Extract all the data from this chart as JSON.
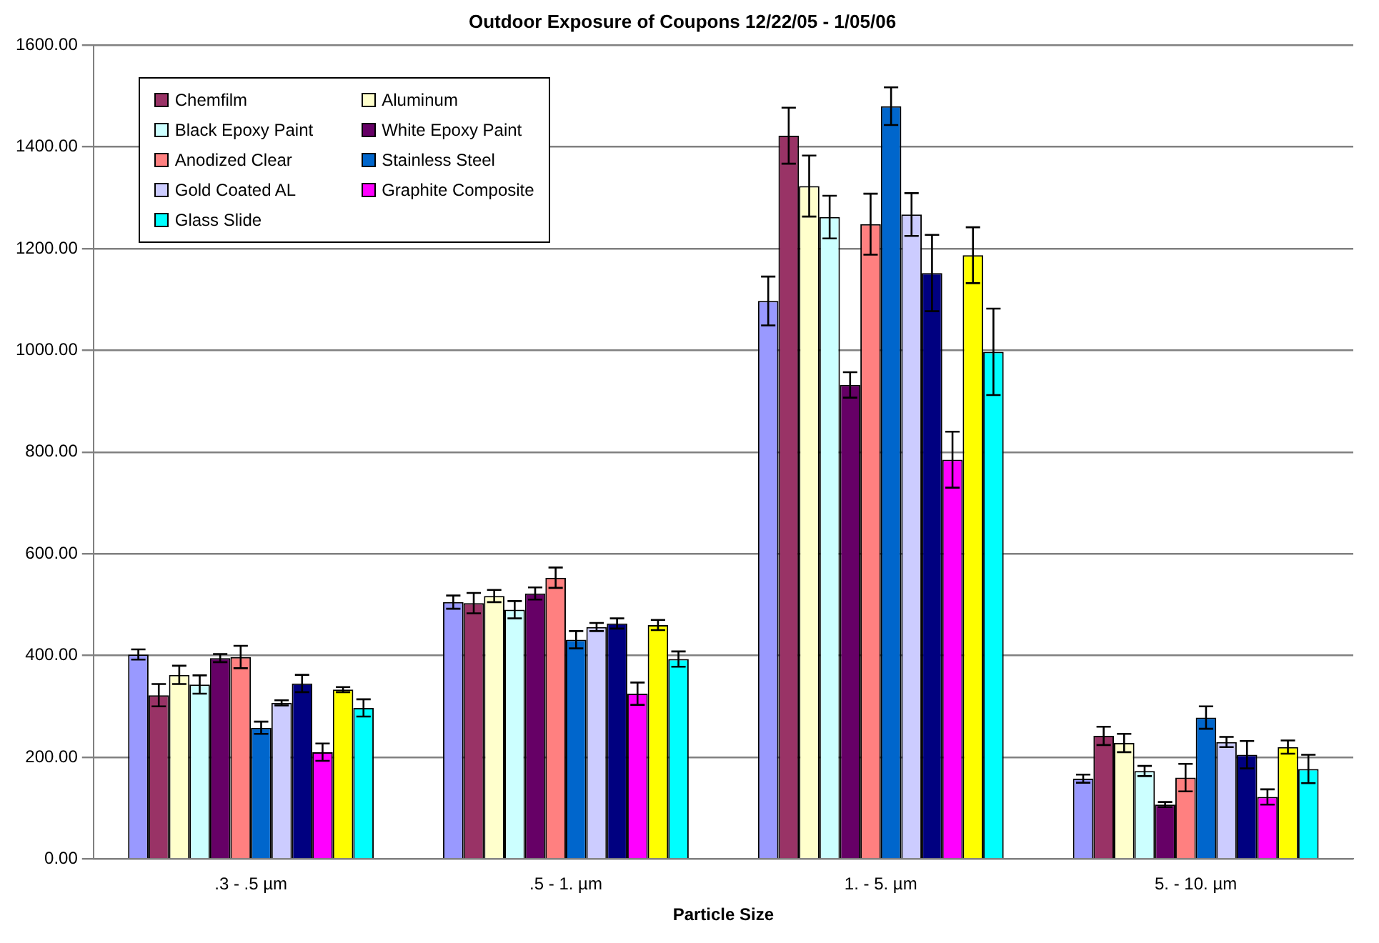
{
  "chart_data": {
    "type": "bar",
    "title": "Outdoor Exposure of Coupons 12/22/05 - 1/05/06",
    "xlabel": "Particle Size",
    "categories": [
      ".3 - .5 µm",
      ".5 - 1. µm",
      "1. - 5. µm",
      "5. - 10. µm"
    ],
    "series": [
      {
        "color": "#9999ff",
        "values": [
          402,
          505,
          1097,
          158
        ],
        "errors": [
          10,
          13,
          48,
          8
        ]
      },
      {
        "name": "Chemfilm",
        "color": "#993366",
        "values": [
          322,
          503,
          1422,
          242
        ],
        "errors": [
          22,
          20,
          55,
          18
        ]
      },
      {
        "name": "Aluminum",
        "color": "#ffffcc",
        "values": [
          362,
          517,
          1323,
          228
        ],
        "errors": [
          18,
          12,
          60,
          18
        ]
      },
      {
        "name": "Black Epoxy Paint",
        "color": "#ccffff",
        "values": [
          343,
          490,
          1262,
          173
        ],
        "errors": [
          18,
          17,
          42,
          10
        ]
      },
      {
        "name": "White Epoxy Paint",
        "color": "#660066",
        "values": [
          395,
          522,
          932,
          107
        ],
        "errors": [
          8,
          12,
          25,
          5
        ]
      },
      {
        "name": "Anodized Clear",
        "color": "#ff8080",
        "values": [
          397,
          553,
          1248,
          160
        ],
        "errors": [
          22,
          20,
          60,
          27
        ]
      },
      {
        "name": "Stainless Steel",
        "color": "#0066cc",
        "values": [
          258,
          431,
          1480,
          278
        ],
        "errors": [
          12,
          17,
          37,
          22
        ]
      },
      {
        "name": "Gold Coated AL",
        "color": "#ccccff",
        "values": [
          307,
          456,
          1267,
          230
        ],
        "errors": [
          5,
          8,
          42,
          10
        ]
      },
      {
        "color": "#000080",
        "values": [
          345,
          463,
          1152,
          205
        ],
        "errors": [
          17,
          10,
          75,
          27
        ]
      },
      {
        "name": "Graphite Composite",
        "color": "#ff00ff",
        "values": [
          210,
          325,
          785,
          122
        ],
        "errors": [
          17,
          22,
          55,
          15
        ]
      },
      {
        "color": "#ffff00",
        "values": [
          333,
          460,
          1187,
          220
        ],
        "errors": [
          5,
          10,
          55,
          13
        ]
      },
      {
        "name": "Glass Slide",
        "color": "#00ffff",
        "values": [
          297,
          393,
          997,
          177
        ],
        "errors": [
          17,
          15,
          85,
          28
        ]
      }
    ],
    "ylim": [
      0,
      1600
    ],
    "yticks": [
      {
        "value": 0,
        "label": "0.00"
      },
      {
        "value": 200,
        "label": "200.00"
      },
      {
        "value": 400,
        "label": "400.00"
      },
      {
        "value": 600,
        "label": "600.00"
      },
      {
        "value": 800,
        "label": "800.00"
      },
      {
        "value": 1000,
        "label": "1000.00"
      },
      {
        "value": 1200,
        "label": "1200.00"
      },
      {
        "value": 1400,
        "label": "1400.00"
      },
      {
        "value": 1600,
        "label": "1600.00"
      }
    ],
    "grid": "y",
    "legend": "top left"
  }
}
